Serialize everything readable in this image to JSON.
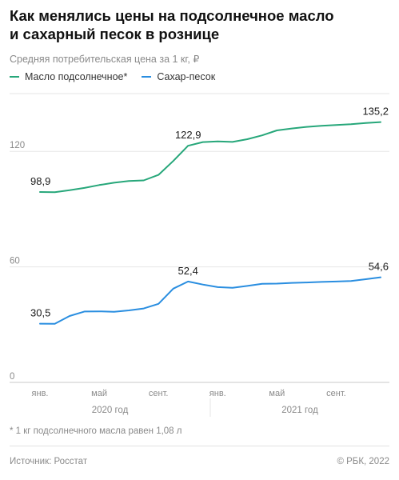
{
  "header": {
    "title_line1": "Как менялись цены на подсолнечное масло",
    "title_line2": "и сахарный песок в рознице",
    "subtitle": "Средняя потребительская цена за 1 кг, ₽"
  },
  "colors": {
    "oil": "#27a77a",
    "sugar": "#2a8ee0",
    "grid": "#e6e6e6",
    "axis": "#c8c8c8",
    "muted": "#8a8a8a"
  },
  "footer": {
    "footnote": "* 1 кг подсолнечного масла равен 1,08 л",
    "source": "Источник: Росстат",
    "copyright": "© РБК, 2022"
  },
  "chart_data": {
    "type": "line",
    "ylim": [
      0,
      150
    ],
    "y_ticks": [
      0,
      60,
      120
    ],
    "y_tick_labels": [
      "0",
      "60",
      "120"
    ],
    "x_tick_labels": [
      {
        "index": 0,
        "label": "янв."
      },
      {
        "index": 4,
        "label": "май"
      },
      {
        "index": 8,
        "label": "сент."
      },
      {
        "index": 12,
        "label": "янв."
      },
      {
        "index": 16,
        "label": "май"
      },
      {
        "index": 20,
        "label": "сент."
      }
    ],
    "year_groups": [
      {
        "label": "2020 год",
        "from": 0,
        "to": 11
      },
      {
        "label": "2021 год",
        "from": 12,
        "to": 22
      }
    ],
    "x": [
      "янв. 2020",
      "фев. 2020",
      "мар. 2020",
      "апр. 2020",
      "май 2020",
      "июн. 2020",
      "июл. 2020",
      "авг. 2020",
      "сент. 2020",
      "окт. 2020",
      "нояб. 2020",
      "дек. 2020",
      "янв. 2021",
      "фев. 2021",
      "мар. 2021",
      "апр. 2021",
      "май 2021",
      "июн. 2021",
      "июл. 2021",
      "авг. 2021",
      "сент. 2021",
      "окт. 2021",
      "нояб. 2021",
      "дек. 2021"
    ],
    "series": [
      {
        "name": "Масло подсолнечное*",
        "key": "oil",
        "values": [
          98.9,
          98.8,
          99.8,
          101.0,
          102.5,
          103.7,
          104.6,
          104.9,
          107.8,
          115.0,
          122.9,
          124.8,
          125.2,
          124.9,
          126.3,
          128.3,
          130.9,
          131.9,
          132.7,
          133.3,
          133.7,
          134.1,
          134.7,
          135.2
        ],
        "labels": [
          {
            "index": 0,
            "text": "98,9"
          },
          {
            "index": 10,
            "text": "122,9"
          },
          {
            "index": 23,
            "text": "135,2"
          }
        ]
      },
      {
        "name": "Сахар-песок",
        "key": "sugar",
        "values": [
          30.5,
          30.4,
          34.5,
          36.8,
          36.9,
          36.7,
          37.4,
          38.4,
          40.8,
          48.7,
          52.4,
          50.8,
          49.5,
          49.1,
          50.1,
          51.2,
          51.3,
          51.7,
          51.9,
          52.2,
          52.4,
          52.7,
          53.6,
          54.6
        ],
        "labels": [
          {
            "index": 0,
            "text": "30,5"
          },
          {
            "index": 10,
            "text": "52,4"
          },
          {
            "index": 23,
            "text": "54,6"
          }
        ]
      }
    ]
  }
}
